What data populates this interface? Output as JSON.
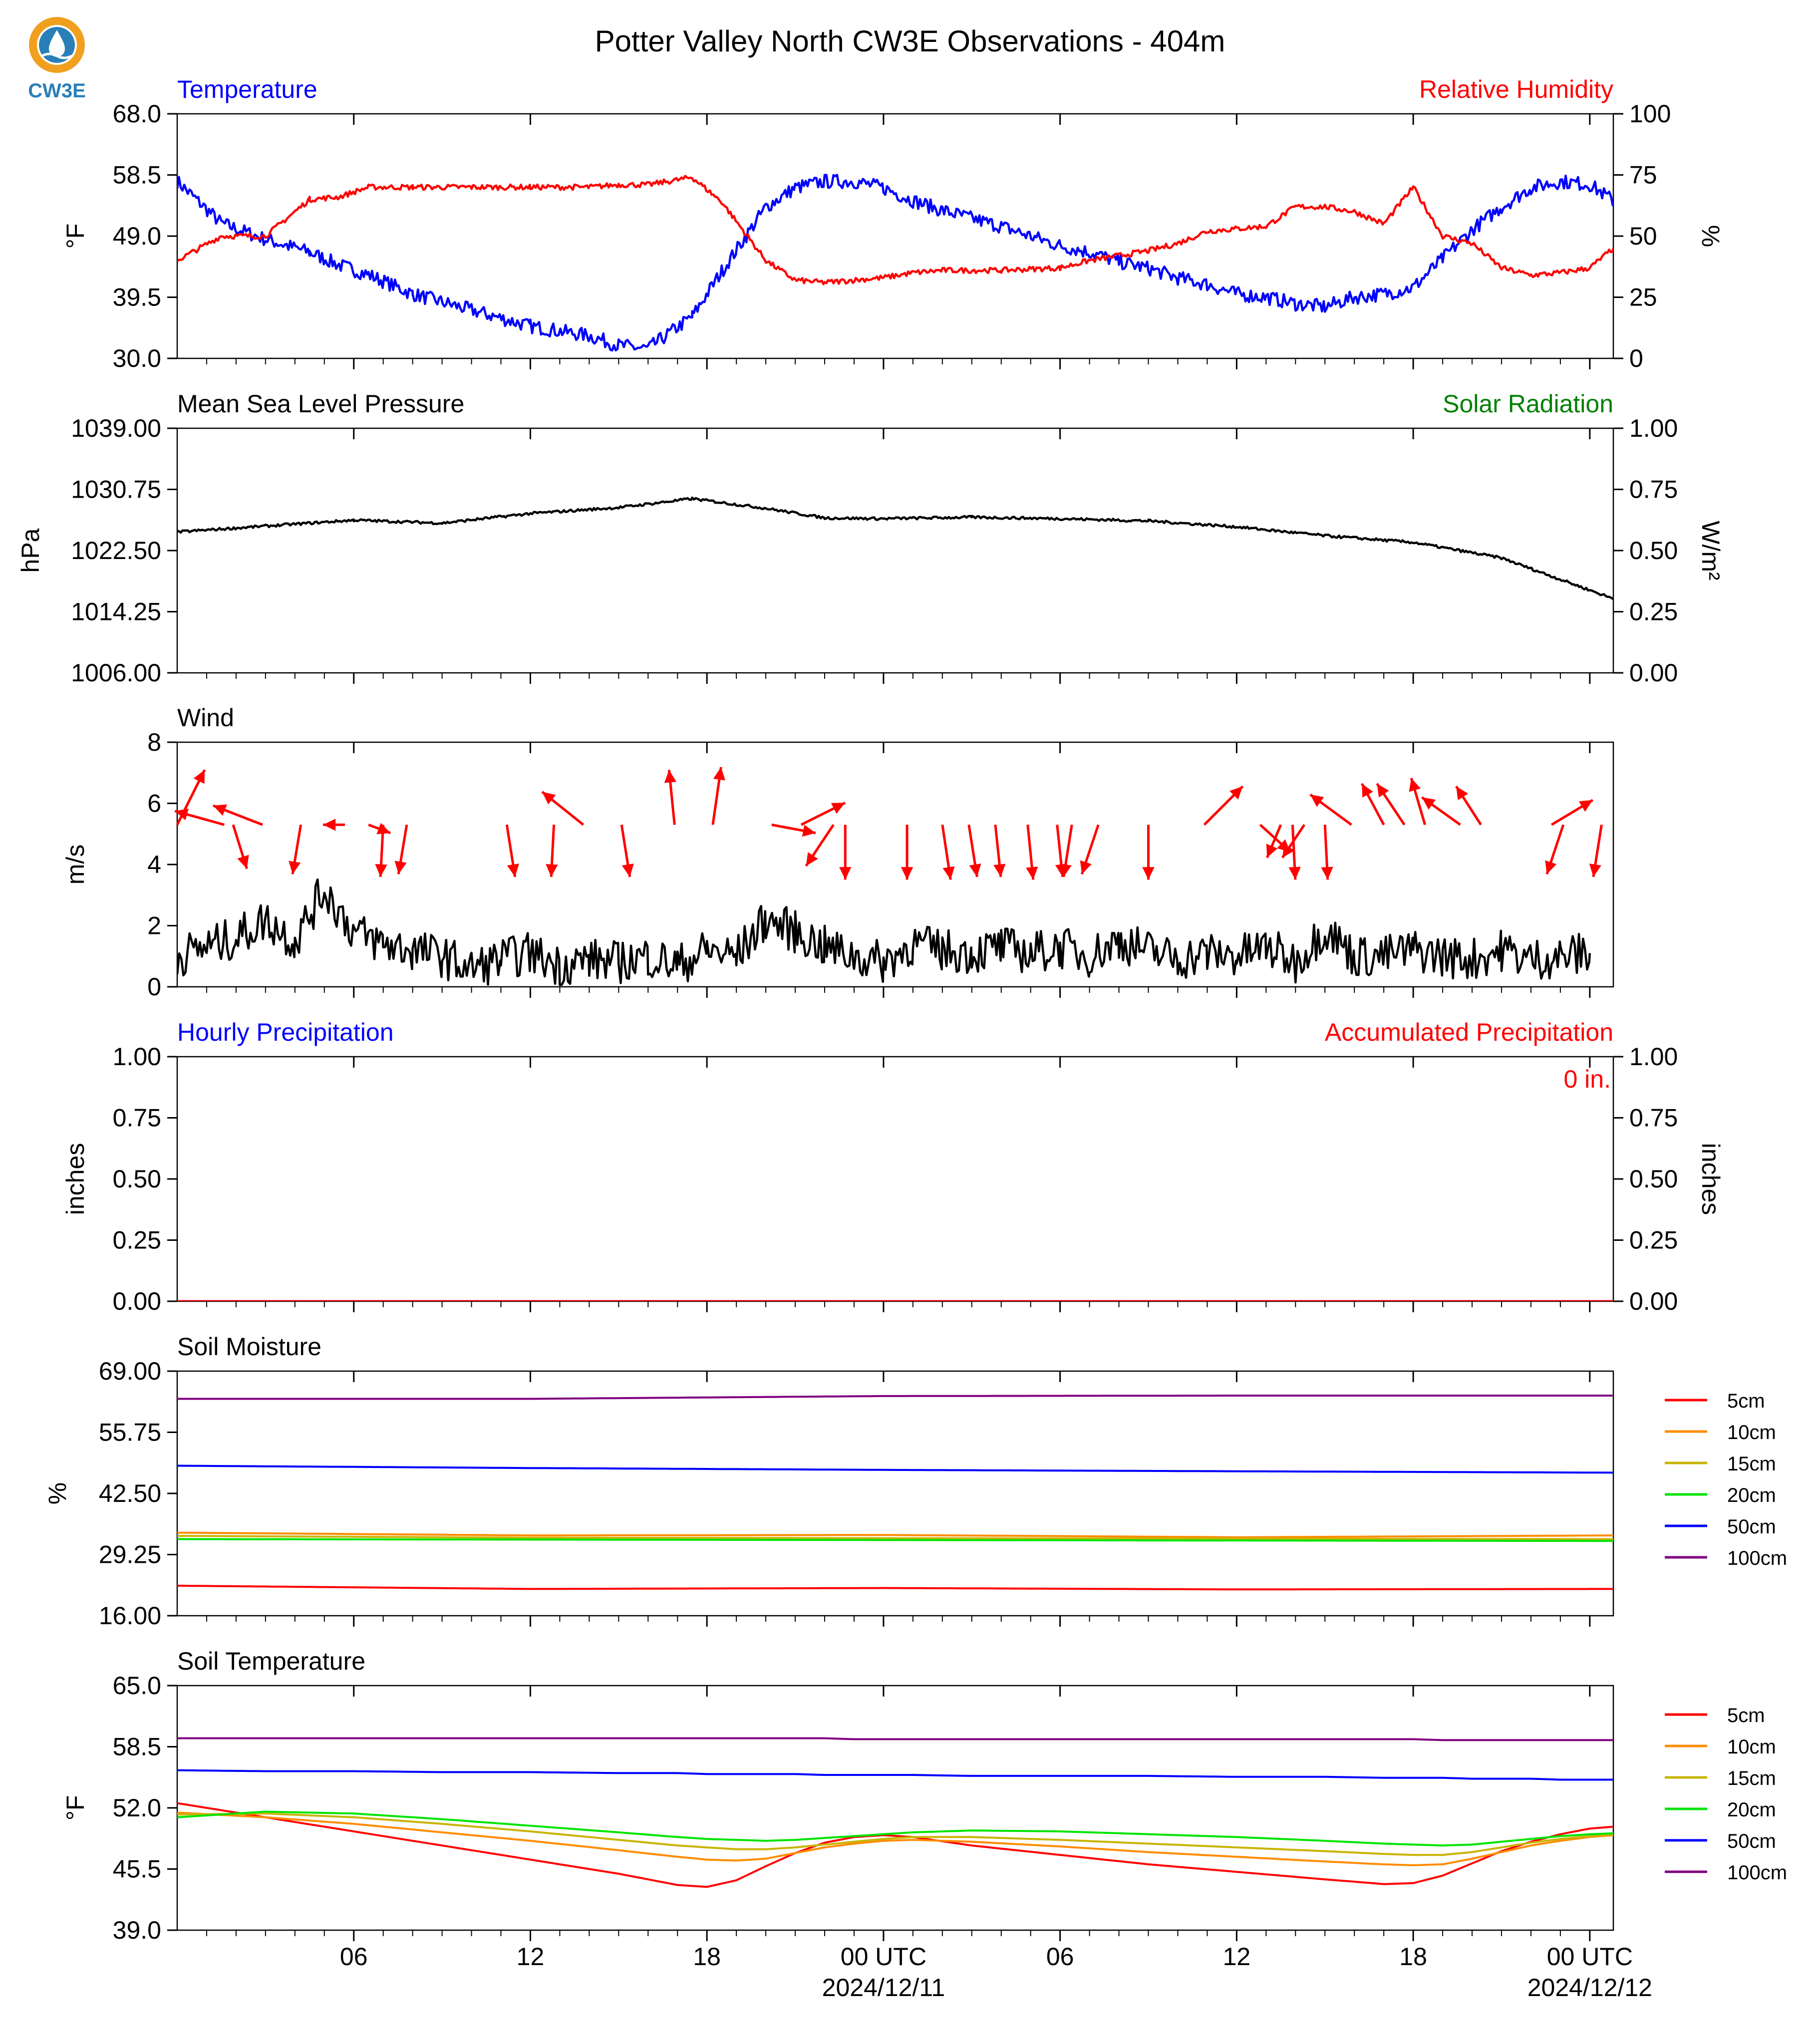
{
  "title": "Potter Valley North CW3E Observations - 404m",
  "logo": {
    "text": "CW3E",
    "icon": "water-drop-logo-icon",
    "color": "#2a7fb8",
    "accent": "#f0a01e"
  },
  "x_axis": {
    "tick_labels": [
      "06",
      "12",
      "18",
      "00 UTC",
      "06",
      "12",
      "18",
      "00 UTC"
    ],
    "date_labels": [
      {
        "at": "00 UTC",
        "label": "2024/12/11"
      },
      {
        "at": "00 UTC",
        "label": "2024/12/12"
      }
    ]
  },
  "chart_data": [
    {
      "type": "line",
      "title": "Temperature",
      "title_right": "Relative Humidity",
      "ylabel": "°F",
      "ylabel_right": "%",
      "ylim": [
        30.0,
        68.0
      ],
      "ylim_right": [
        0,
        100
      ],
      "yticks": [
        "30.0",
        "39.5",
        "49.0",
        "58.5",
        "68.0"
      ],
      "yticks_right": [
        "0",
        "25",
        "50",
        "75",
        "100"
      ],
      "x_hours": [
        0,
        1.5,
        3,
        4.5,
        5.5,
        6.5,
        8,
        10,
        12,
        14,
        15,
        16,
        17.5,
        18.5,
        20,
        21,
        22,
        23,
        24,
        25,
        26,
        28,
        30,
        31,
        32,
        33,
        34,
        35,
        36,
        37,
        38,
        39,
        40,
        41,
        42,
        43,
        44,
        45,
        46,
        47,
        48,
        48.8
      ],
      "series": [
        {
          "name": "Temperature",
          "color": "#0000ff",
          "axis": "left",
          "values": [
            57.5,
            51.0,
            48.5,
            46.5,
            44.5,
            43.0,
            40.0,
            37.5,
            35.0,
            33.5,
            32.0,
            31.5,
            36.5,
            43.5,
            53.5,
            56.5,
            57.5,
            57.5,
            56.5,
            54.5,
            53.0,
            50.5,
            47.5,
            46.5,
            45.0,
            44.0,
            42.5,
            41.5,
            40.0,
            39.5,
            38.5,
            38.0,
            39.5,
            40.0,
            41.0,
            45.5,
            50.0,
            53.5,
            56.5,
            57.5,
            57.0,
            54.5
          ]
        },
        {
          "name": "Relative Humidity",
          "color": "#ff0000",
          "axis": "right",
          "values": [
            40,
            50,
            50,
            65,
            66,
            70,
            70,
            70,
            70,
            70,
            71,
            71,
            74,
            64,
            40,
            32,
            31,
            32,
            33,
            35,
            36,
            36,
            37,
            40,
            42,
            44,
            47,
            52,
            53,
            54,
            62,
            62,
            60,
            55,
            70,
            50,
            47,
            37,
            34,
            35,
            37,
            45
          ]
        }
      ]
    },
    {
      "type": "line",
      "title": "Mean Sea Level Pressure",
      "title_right": "Solar Radiation",
      "ylabel": "hPa",
      "ylabel_right": "W/m²",
      "ylim": [
        1006.0,
        1039.0
      ],
      "ylim_right": [
        0.0,
        1.0
      ],
      "yticks": [
        "1006.00",
        "1014.25",
        "1022.50",
        "1030.75",
        "1039.00"
      ],
      "yticks_right": [
        "0.00",
        "0.25",
        "0.50",
        "0.75",
        "1.00"
      ],
      "x_hours": [
        0,
        3,
        6,
        9,
        12,
        15,
        17.5,
        20,
        22,
        24,
        27,
        30,
        33,
        36,
        39,
        42,
        45,
        48.8
      ],
      "series": [
        {
          "name": "Mean Sea Level Pressure",
          "color": "#000000",
          "axis": "left",
          "values": [
            1025.0,
            1025.8,
            1026.6,
            1026.2,
            1027.5,
            1028.3,
            1029.5,
            1028.2,
            1026.9,
            1026.8,
            1027.0,
            1026.8,
            1026.5,
            1025.7,
            1024.5,
            1023.6,
            1021.5,
            1016.0
          ]
        }
      ]
    },
    {
      "type": "line",
      "title": "Wind",
      "ylabel": "m/s",
      "ylim": [
        0,
        8
      ],
      "yticks": [
        "0",
        "2",
        "4",
        "6",
        "8"
      ],
      "series": [
        {
          "name": "Wind",
          "color": "#000000",
          "values": [
            1.0,
            1.3,
            1.6,
            2.2,
            1.5,
            3.2,
            1.8,
            1.4,
            1.2,
            1.0,
            0.6,
            0.9,
            1.1,
            0.7,
            0.9,
            0.8,
            1.0,
            0.7,
            1.2,
            1.0,
            2.2,
            1.8,
            1.3,
            1.0,
            0.8,
            1.4,
            1.2,
            1.1,
            1.3,
            1.1,
            1.3,
            1.0,
            1.5,
            1.2,
            0.9,
            1.1,
            1.0,
            1.3,
            0.8,
            1.9,
            1.0,
            1.0,
            1.2,
            1.0,
            0.9,
            1.2,
            0.9,
            1.0,
            1.1
          ]
        },
        {
          "name": "Wind direction",
          "color": "#ff0000",
          "arrows": [
            {
              "hour": 0.0,
              "u": 1.0,
              "v": 2.0
            },
            {
              "hour": 1.6,
              "u": -1.8,
              "v": 0.5
            },
            {
              "hour": 1.9,
              "u": 0.5,
              "v": -1.6
            },
            {
              "hour": 2.9,
              "u": -1.8,
              "v": 0.7
            },
            {
              "hour": 4.2,
              "u": -0.3,
              "v": -1.8
            },
            {
              "hour": 5.7,
              "u": -0.8,
              "v": 0.0
            },
            {
              "hour": 6.5,
              "u": 0.8,
              "v": -0.3
            },
            {
              "hour": 7.0,
              "u": -0.1,
              "v": -1.9
            },
            {
              "hour": 7.8,
              "u": -0.3,
              "v": -1.8
            },
            {
              "hour": 11.2,
              "u": 0.3,
              "v": -1.9
            },
            {
              "hour": 12.8,
              "u": -0.1,
              "v": -1.9
            },
            {
              "hour": 13.8,
              "u": -1.5,
              "v": 1.2
            },
            {
              "hour": 15.1,
              "u": 0.3,
              "v": -1.9
            },
            {
              "hour": 16.9,
              "u": -0.2,
              "v": 2.0
            },
            {
              "hour": 18.2,
              "u": 0.3,
              "v": 2.1
            },
            {
              "hour": 20.2,
              "u": 1.6,
              "v": -0.3
            },
            {
              "hour": 21.2,
              "u": 1.6,
              "v": 0.8
            },
            {
              "hour": 22.3,
              "u": -1.0,
              "v": -1.5
            },
            {
              "hour": 22.7,
              "u": 0.0,
              "v": -2.0
            },
            {
              "hour": 24.8,
              "u": 0.0,
              "v": -2.0
            },
            {
              "hour": 26.0,
              "u": 0.3,
              "v": -2.0
            },
            {
              "hour": 26.9,
              "u": 0.3,
              "v": -1.9
            },
            {
              "hour": 27.8,
              "u": 0.2,
              "v": -1.9
            },
            {
              "hour": 28.9,
              "u": 0.2,
              "v": -2.0
            },
            {
              "hour": 29.9,
              "u": 0.2,
              "v": -1.9
            },
            {
              "hour": 30.4,
              "u": -0.3,
              "v": -1.9
            },
            {
              "hour": 31.3,
              "u": -0.6,
              "v": -1.8
            },
            {
              "hour": 33.0,
              "u": 0.0,
              "v": -2.0
            },
            {
              "hour": 34.9,
              "u": 1.4,
              "v": 1.4
            },
            {
              "hour": 36.8,
              "u": 1.1,
              "v": -1.0
            },
            {
              "hour": 37.5,
              "u": -0.5,
              "v": -1.2
            },
            {
              "hour": 37.9,
              "u": 0.1,
              "v": -2.0
            },
            {
              "hour": 38.3,
              "u": -0.8,
              "v": -1.2
            },
            {
              "hour": 39.0,
              "u": 0.1,
              "v": -2.0
            },
            {
              "hour": 39.9,
              "u": -1.5,
              "v": 1.1
            },
            {
              "hour": 41.0,
              "u": -0.8,
              "v": 1.5
            },
            {
              "hour": 41.7,
              "u": -1.0,
              "v": 1.5
            },
            {
              "hour": 42.4,
              "u": -0.5,
              "v": 1.7
            },
            {
              "hour": 43.6,
              "u": -1.4,
              "v": 1.0
            },
            {
              "hour": 44.3,
              "u": -0.9,
              "v": 1.4
            },
            {
              "hour": 46.7,
              "u": 1.5,
              "v": 0.9
            },
            {
              "hour": 47.1,
              "u": -0.6,
              "v": -1.8
            },
            {
              "hour": 48.4,
              "u": -0.3,
              "v": -1.9
            }
          ]
        }
      ]
    },
    {
      "type": "line",
      "title": "Hourly Precipitation",
      "title_right": "Accumulated Precipitation",
      "annotation": "0 in.",
      "ylabel": "inches",
      "ylabel_right": "inches",
      "ylim": [
        0.0,
        1.0
      ],
      "ylim_right": [
        0.0,
        1.0
      ],
      "yticks": [
        "0.00",
        "0.25",
        "0.50",
        "0.75",
        "1.00"
      ],
      "yticks_right": [
        "0.00",
        "0.25",
        "0.50",
        "0.75",
        "1.00"
      ],
      "x_hours": [
        0,
        48.8
      ],
      "series": [
        {
          "name": "Hourly Precipitation",
          "color": "#0000ff",
          "values": [
            0.0,
            0.0
          ]
        },
        {
          "name": "Accumulated Precipitation",
          "color": "#ff0000",
          "values": [
            0.0,
            0.0
          ]
        }
      ]
    },
    {
      "type": "line",
      "title": "Soil Moisture",
      "ylabel": "%",
      "ylim": [
        16.0,
        69.0
      ],
      "yticks": [
        "16.00",
        "29.25",
        "42.50",
        "55.75",
        "69.00"
      ],
      "x_hours": [
        0,
        12,
        24,
        36,
        48.8
      ],
      "series": [
        {
          "name": "5cm",
          "color": "#ff0000",
          "values": [
            22.5,
            21.8,
            22.0,
            21.7,
            21.8
          ]
        },
        {
          "name": "10cm",
          "color": "#ff8c00",
          "values": [
            34.0,
            33.4,
            33.5,
            33.0,
            33.4
          ]
        },
        {
          "name": "15cm",
          "color": "#c8b400",
          "values": [
            33.3,
            32.9,
            32.8,
            32.7,
            32.6
          ]
        },
        {
          "name": "20cm",
          "color": "#00e400",
          "values": [
            32.6,
            32.5,
            32.4,
            32.3,
            32.2
          ]
        },
        {
          "name": "50cm",
          "color": "#0000ff",
          "values": [
            48.5,
            48.0,
            47.6,
            47.3,
            47.0
          ]
        },
        {
          "name": "100cm",
          "color": "#800080",
          "values": [
            63.0,
            63.0,
            63.6,
            63.7,
            63.7
          ]
        }
      ]
    },
    {
      "type": "line",
      "title": "Soil Temperature",
      "ylabel": "°F",
      "ylim": [
        39.0,
        65.0
      ],
      "yticks": [
        "39.0",
        "45.5",
        "52.0",
        "58.5",
        "65.0"
      ],
      "x_hours": [
        0,
        3,
        6,
        9,
        12,
        15,
        17,
        18,
        19,
        20,
        21,
        22,
        23,
        24,
        25,
        27,
        30,
        33,
        36,
        39,
        41,
        42,
        43,
        44,
        45,
        46,
        47,
        48,
        48.8
      ],
      "series": [
        {
          "name": "5cm",
          "color": "#ff0000",
          "values": [
            52.5,
            51.0,
            49.5,
            48.0,
            46.5,
            45.0,
            43.8,
            43.6,
            44.3,
            45.8,
            47.2,
            48.3,
            48.9,
            49.1,
            48.9,
            48.0,
            47.0,
            46.0,
            45.2,
            44.4,
            43.9,
            44.0,
            44.8,
            46.1,
            47.4,
            48.4,
            49.2,
            49.8,
            50.0
          ]
        },
        {
          "name": "10cm",
          "color": "#ff8c00",
          "values": [
            51.5,
            51.0,
            50.3,
            49.4,
            48.5,
            47.5,
            46.8,
            46.5,
            46.4,
            46.6,
            47.2,
            47.8,
            48.2,
            48.5,
            48.6,
            48.4,
            47.9,
            47.3,
            46.8,
            46.3,
            46.0,
            45.9,
            46.0,
            46.6,
            47.3,
            48.0,
            48.5,
            48.9,
            49.1
          ]
        },
        {
          "name": "15cm",
          "color": "#c8b400",
          "values": [
            51.3,
            51.4,
            51.0,
            50.3,
            49.5,
            48.6,
            48.0,
            47.8,
            47.6,
            47.6,
            47.8,
            48.1,
            48.4,
            48.7,
            48.9,
            48.9,
            48.6,
            48.2,
            47.8,
            47.4,
            47.1,
            47.0,
            47.0,
            47.3,
            47.8,
            48.3,
            48.7,
            49.0,
            49.2
          ]
        },
        {
          "name": "20cm",
          "color": "#00e400",
          "values": [
            51.0,
            51.6,
            51.4,
            50.8,
            50.1,
            49.4,
            48.9,
            48.7,
            48.6,
            48.5,
            48.6,
            48.8,
            49.0,
            49.2,
            49.4,
            49.6,
            49.5,
            49.2,
            48.9,
            48.5,
            48.2,
            48.1,
            48.0,
            48.1,
            48.4,
            48.7,
            49.0,
            49.2,
            49.3
          ]
        },
        {
          "name": "50cm",
          "color": "#0000ff",
          "values": [
            56.0,
            55.9,
            55.9,
            55.8,
            55.8,
            55.7,
            55.7,
            55.6,
            55.6,
            55.6,
            55.6,
            55.5,
            55.5,
            55.5,
            55.5,
            55.4,
            55.4,
            55.4,
            55.3,
            55.3,
            55.2,
            55.2,
            55.2,
            55.1,
            55.1,
            55.1,
            55.0,
            55.0,
            55.0
          ]
        },
        {
          "name": "100cm",
          "color": "#800080",
          "values": [
            59.4,
            59.4,
            59.4,
            59.4,
            59.4,
            59.4,
            59.4,
            59.4,
            59.4,
            59.4,
            59.4,
            59.4,
            59.3,
            59.3,
            59.3,
            59.3,
            59.3,
            59.3,
            59.3,
            59.3,
            59.3,
            59.3,
            59.2,
            59.2,
            59.2,
            59.2,
            59.2,
            59.2,
            59.2
          ]
        }
      ]
    }
  ]
}
